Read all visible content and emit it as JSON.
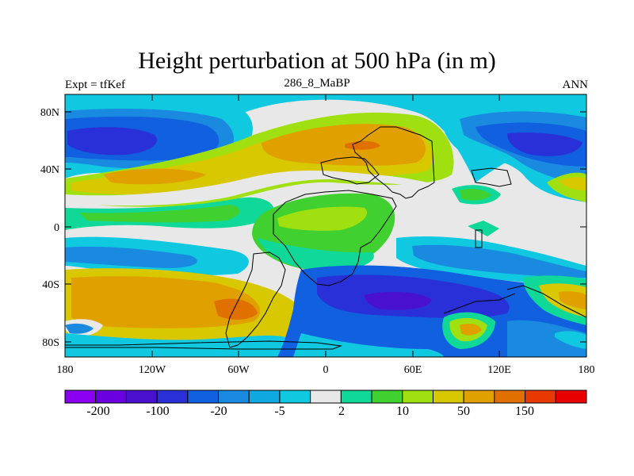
{
  "title": "Height perturbation at 500 hPa (in m)",
  "left_string": "Expt = tfKef",
  "center_string": "286_8_MaBP",
  "right_string": "ANN",
  "map": {
    "lat_ticks": [
      "80N",
      "40N",
      "0",
      "40S",
      "80S"
    ],
    "lon_ticks": [
      "180",
      "120W",
      "60W",
      "0",
      "60E",
      "120E",
      "180"
    ],
    "fields": [
      {
        "name": "high-lat-north-low",
        "level": -100
      },
      {
        "name": "northern-subtropical-high",
        "level": 50
      },
      {
        "name": "southern-midlat-high",
        "level": 50
      },
      {
        "name": "southern-ocean-low",
        "level": -100
      }
    ]
  },
  "colorbar": {
    "colors": [
      "#8a00f0",
      "#6a00e0",
      "#4a10d0",
      "#2a30d8",
      "#1060e0",
      "#1a8ae0",
      "#10a8e0",
      "#10c8e0",
      "#e8e8e8",
      "#10d898",
      "#40d030",
      "#a0e010",
      "#d8c800",
      "#e0a000",
      "#e07000",
      "#e83a00",
      "#e80000"
    ],
    "labels": [
      "-200",
      "-100",
      "-20",
      "-5",
      "2",
      "10",
      "50",
      "150"
    ]
  }
}
